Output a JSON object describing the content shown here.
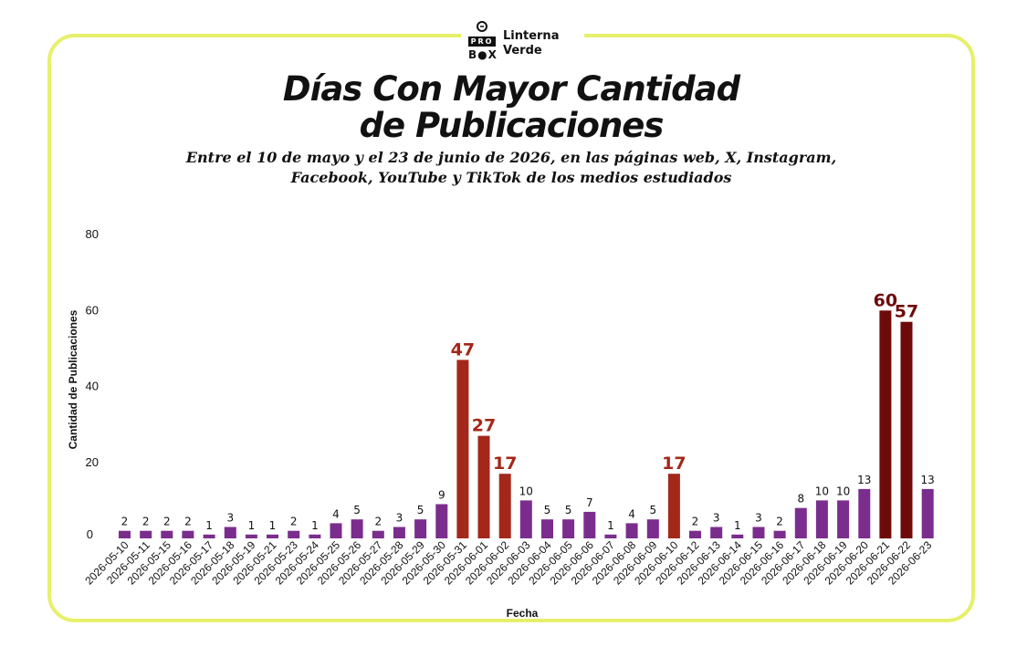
{
  "logo": {
    "mark_top": "PRO",
    "mark_bottom": "B●X",
    "line1": "Linterna",
    "line2": "Verde"
  },
  "header": {
    "title_line1": "Días Con Mayor Cantidad",
    "title_line2": "de Publicaciones",
    "subtitle_line1": "Entre el 10 de mayo y el 23 de junio de 2026, en las páginas web, X, Instagram,",
    "subtitle_line2": "Facebook, YouTube y TikTok de los medios estudiados"
  },
  "colors": {
    "normal": "#7b2d8e",
    "high": "#a3281a",
    "top": "#6e0a0a",
    "frame": "#e6f06a"
  },
  "chart_data": {
    "type": "bar",
    "xlabel": "Fecha",
    "ylabel": "Cantidad de Publicaciones",
    "ylim": [
      0,
      80
    ],
    "yticks": [
      0,
      20,
      40,
      60,
      80
    ],
    "grid": false,
    "categories": [
      "2026-05-10",
      "2026-05-11",
      "2026-05-15",
      "2026-05-16",
      "2026-05-17",
      "2026-05-18",
      "2026-05-19",
      "2026-05-21",
      "2026-05-23",
      "2026-05-24",
      "2026-05-25",
      "2026-05-26",
      "2026-05-27",
      "2026-05-28",
      "2026-05-29",
      "2026-05-30",
      "2026-05-31",
      "2026-06-01",
      "2026-06-02",
      "2026-06-03",
      "2026-06-04",
      "2026-06-05",
      "2026-06-06",
      "2026-06-07",
      "2026-06-08",
      "2026-06-09",
      "2026-06-10",
      "2026-06-12",
      "2026-06-13",
      "2026-06-14",
      "2026-06-15",
      "2026-06-16",
      "2026-06-17",
      "2026-06-18",
      "2026-06-19",
      "2026-06-20",
      "2026-06-21",
      "2026-06-22",
      "2026-06-23"
    ],
    "values": [
      2,
      2,
      2,
      2,
      1,
      3,
      1,
      1,
      2,
      1,
      4,
      5,
      2,
      3,
      5,
      9,
      47,
      27,
      17,
      10,
      5,
      5,
      7,
      1,
      4,
      5,
      17,
      2,
      3,
      1,
      3,
      2,
      8,
      10,
      10,
      13,
      60,
      57,
      13
    ],
    "labels": [
      "2",
      "2",
      "2",
      "2",
      "1",
      "3",
      "1",
      "1",
      "2",
      "1",
      "4",
      "5",
      "2",
      "3",
      "5",
      "9",
      "47",
      "27",
      "17",
      "10",
      "5",
      "5",
      "7",
      "1",
      "4",
      "5",
      "17",
      "2",
      "3",
      "1",
      "3",
      "2",
      "8",
      "10",
      "10",
      "13",
      "60",
      "57",
      "13"
    ],
    "highlight": [
      "normal",
      "normal",
      "normal",
      "normal",
      "normal",
      "normal",
      "normal",
      "normal",
      "normal",
      "normal",
      "normal",
      "normal",
      "normal",
      "normal",
      "normal",
      "normal",
      "high",
      "high",
      "high",
      "normal",
      "normal",
      "normal",
      "normal",
      "normal",
      "normal",
      "normal",
      "high",
      "normal",
      "normal",
      "normal",
      "normal",
      "normal",
      "normal",
      "normal",
      "normal",
      "normal",
      "top",
      "top",
      "normal"
    ]
  }
}
